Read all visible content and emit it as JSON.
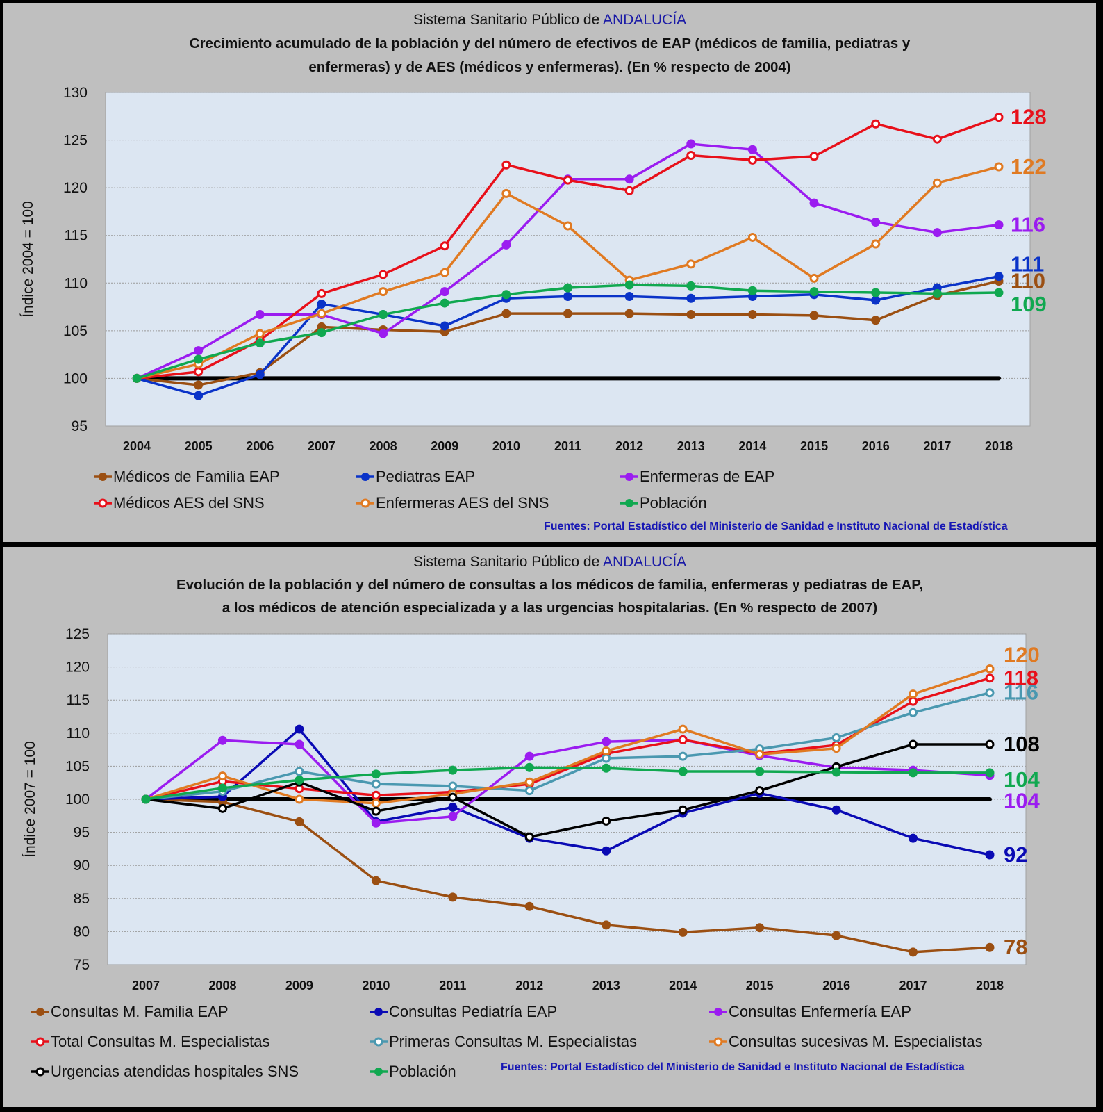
{
  "panel1": {
    "title_prefix": "Sistema Sanitario Público de ",
    "title_region": "ANDALUCÍA",
    "subtitle_line1": "Crecimiento acumulado de la población y del número de efectivos de EAP (médicos de familia, pediatras y",
    "subtitle_line2": "enfermeras) y de AES (médicos y enfermeras). (En % respecto de 2004)",
    "source": "Fuentes:  Portal Estadístico del Ministerio de Sanidad e Instituto Nacional de Estadística"
  },
  "panel2": {
    "title_prefix": "Sistema Sanitario Público de ",
    "title_region": "ANDALUCÍA",
    "subtitle_line1": "Evolución de la población y del número de consultas a los médicos de familia, enfermeras y pediatras de EAP,",
    "subtitle_line2": "a los médicos de atención especializada y a las urgencias hospitalarias.  (En % respecto de 2007)",
    "source": "Fuentes: Portal Estadístico del Ministerio de Sanidad e Instituto Nacional de Estadística"
  },
  "chart_data": [
    {
      "type": "line",
      "title": "Crecimiento acumulado de la población y del número de efectivos de EAP y de AES (En % respecto de 2004)",
      "xlabel": "",
      "ylabel": "Índice 2004 = 100",
      "ylim": [
        95,
        130
      ],
      "yticks": [
        95,
        100,
        105,
        110,
        115,
        120,
        125,
        130
      ],
      "grid": true,
      "legend": "bottom",
      "x": [
        "2004",
        "2005",
        "2006",
        "2007",
        "2008",
        "2009",
        "2010",
        "2011",
        "2012",
        "2013",
        "2014",
        "2015",
        "2016",
        "2017",
        "2018"
      ],
      "baseline": 100,
      "series": [
        {
          "name": "Médicos de Familia EAP",
          "color": "#9b4f12",
          "marker": "filled",
          "end_label": "110",
          "values": [
            100,
            99.3,
            100.6,
            105.4,
            105.1,
            104.9,
            106.8,
            106.8,
            106.8,
            106.7,
            106.7,
            106.6,
            106.1,
            108.7,
            110.2
          ]
        },
        {
          "name": "Pediatras EAP",
          "color": "#0a33c8",
          "marker": "filled",
          "end_label": "111",
          "values": [
            100,
            98.2,
            100.4,
            107.8,
            106.7,
            105.5,
            108.4,
            108.6,
            108.6,
            108.4,
            108.6,
            108.8,
            108.2,
            109.5,
            110.7
          ]
        },
        {
          "name": "Enfermeras de EAP",
          "color": "#9b1cf0",
          "marker": "filled",
          "end_label": "116",
          "values": [
            100,
            102.9,
            106.7,
            106.7,
            104.7,
            109.1,
            114.0,
            120.9,
            120.9,
            124.6,
            124.0,
            118.4,
            116.4,
            115.3,
            116.1
          ]
        },
        {
          "name": "Médicos AES del SNS",
          "color": "#e8101a",
          "marker": "open",
          "end_label": "128",
          "values": [
            100,
            100.7,
            104.0,
            108.9,
            110.9,
            113.9,
            122.4,
            120.8,
            119.7,
            123.4,
            122.9,
            123.3,
            126.7,
            125.1,
            127.4
          ]
        },
        {
          "name": "Enfermeras AES del SNS",
          "color": "#e07a22",
          "marker": "open",
          "end_label": "122",
          "values": [
            100,
            101.5,
            104.7,
            106.8,
            109.1,
            111.1,
            119.4,
            116.0,
            110.3,
            112.0,
            114.8,
            110.5,
            114.1,
            120.5,
            122.2
          ]
        },
        {
          "name": "Población",
          "color": "#10a850",
          "marker": "filled",
          "end_label": "109",
          "values": [
            100,
            102.0,
            103.7,
            104.8,
            106.7,
            107.9,
            108.8,
            109.5,
            109.8,
            109.7,
            109.2,
            109.1,
            109.0,
            108.9,
            109.0
          ]
        }
      ]
    },
    {
      "type": "line",
      "title": "Evolución de la población y del número de consultas (En % respecto de 2007)",
      "xlabel": "",
      "ylabel": "Índice 2007 = 100",
      "ylim": [
        75,
        125
      ],
      "yticks": [
        75,
        80,
        85,
        90,
        95,
        100,
        105,
        110,
        115,
        120,
        125
      ],
      "grid": true,
      "legend": "bottom",
      "x": [
        "2007",
        "2008",
        "2009",
        "2010",
        "2011",
        "2012",
        "2013",
        "2014",
        "2015",
        "2016",
        "2017",
        "2018"
      ],
      "baseline": 100,
      "series": [
        {
          "name": "Consultas M. Familia EAP",
          "color": "#9b4f12",
          "marker": "filled",
          "end_label": "78",
          "values": [
            100,
            99.6,
            96.6,
            87.7,
            85.2,
            83.8,
            81.0,
            79.9,
            80.6,
            79.4,
            76.9,
            77.6
          ]
        },
        {
          "name": "Consultas Pediatría EAP",
          "color": "#0a0ab4",
          "marker": "filled",
          "end_label": "92",
          "values": [
            100,
            100.4,
            110.6,
            96.6,
            98.8,
            94.1,
            92.2,
            97.9,
            100.9,
            98.4,
            94.1,
            91.6
          ]
        },
        {
          "name": "Consultas Enfermería EAP",
          "color": "#9b1cf0",
          "marker": "filled",
          "end_label": "104",
          "values": [
            100,
            108.9,
            108.3,
            96.4,
            97.4,
            106.5,
            108.7,
            109.0,
            106.6,
            104.8,
            104.4,
            103.6
          ]
        },
        {
          "name": "Total Consultas M. Especialistas",
          "color": "#e8101a",
          "marker": "open",
          "end_label": "118",
          "values": [
            100,
            102.7,
            101.6,
            100.6,
            101.1,
            102.3,
            106.9,
            109.0,
            106.9,
            108.2,
            114.8,
            118.3
          ]
        },
        {
          "name": "Primeras Consultas M. Especialistas",
          "color": "#4a98b0",
          "marker": "open",
          "end_label": "116",
          "values": [
            100,
            101.2,
            104.2,
            102.3,
            102.0,
            101.3,
            106.2,
            106.5,
            107.6,
            109.3,
            113.1,
            116.1
          ]
        },
        {
          "name": "Consultas sucesivas M. Especialistas",
          "color": "#e07a22",
          "marker": "open",
          "end_label": "120",
          "values": [
            100,
            103.5,
            100.0,
            99.4,
            100.8,
            102.6,
            107.3,
            110.6,
            106.8,
            107.7,
            115.9,
            119.7
          ]
        },
        {
          "name": "Urgencias atendidas hospitales SNS",
          "color": "#000000",
          "marker": "open",
          "end_label": "108",
          "values": [
            100,
            98.6,
            102.6,
            98.2,
            100.3,
            94.3,
            96.7,
            98.4,
            101.3,
            104.9,
            108.3,
            108.3
          ]
        },
        {
          "name": "Población",
          "color": "#10a850",
          "marker": "filled",
          "end_label": "104",
          "values": [
            100,
            101.7,
            102.9,
            103.8,
            104.4,
            104.8,
            104.7,
            104.2,
            104.2,
            104.1,
            104.0,
            104.0
          ]
        }
      ]
    }
  ]
}
